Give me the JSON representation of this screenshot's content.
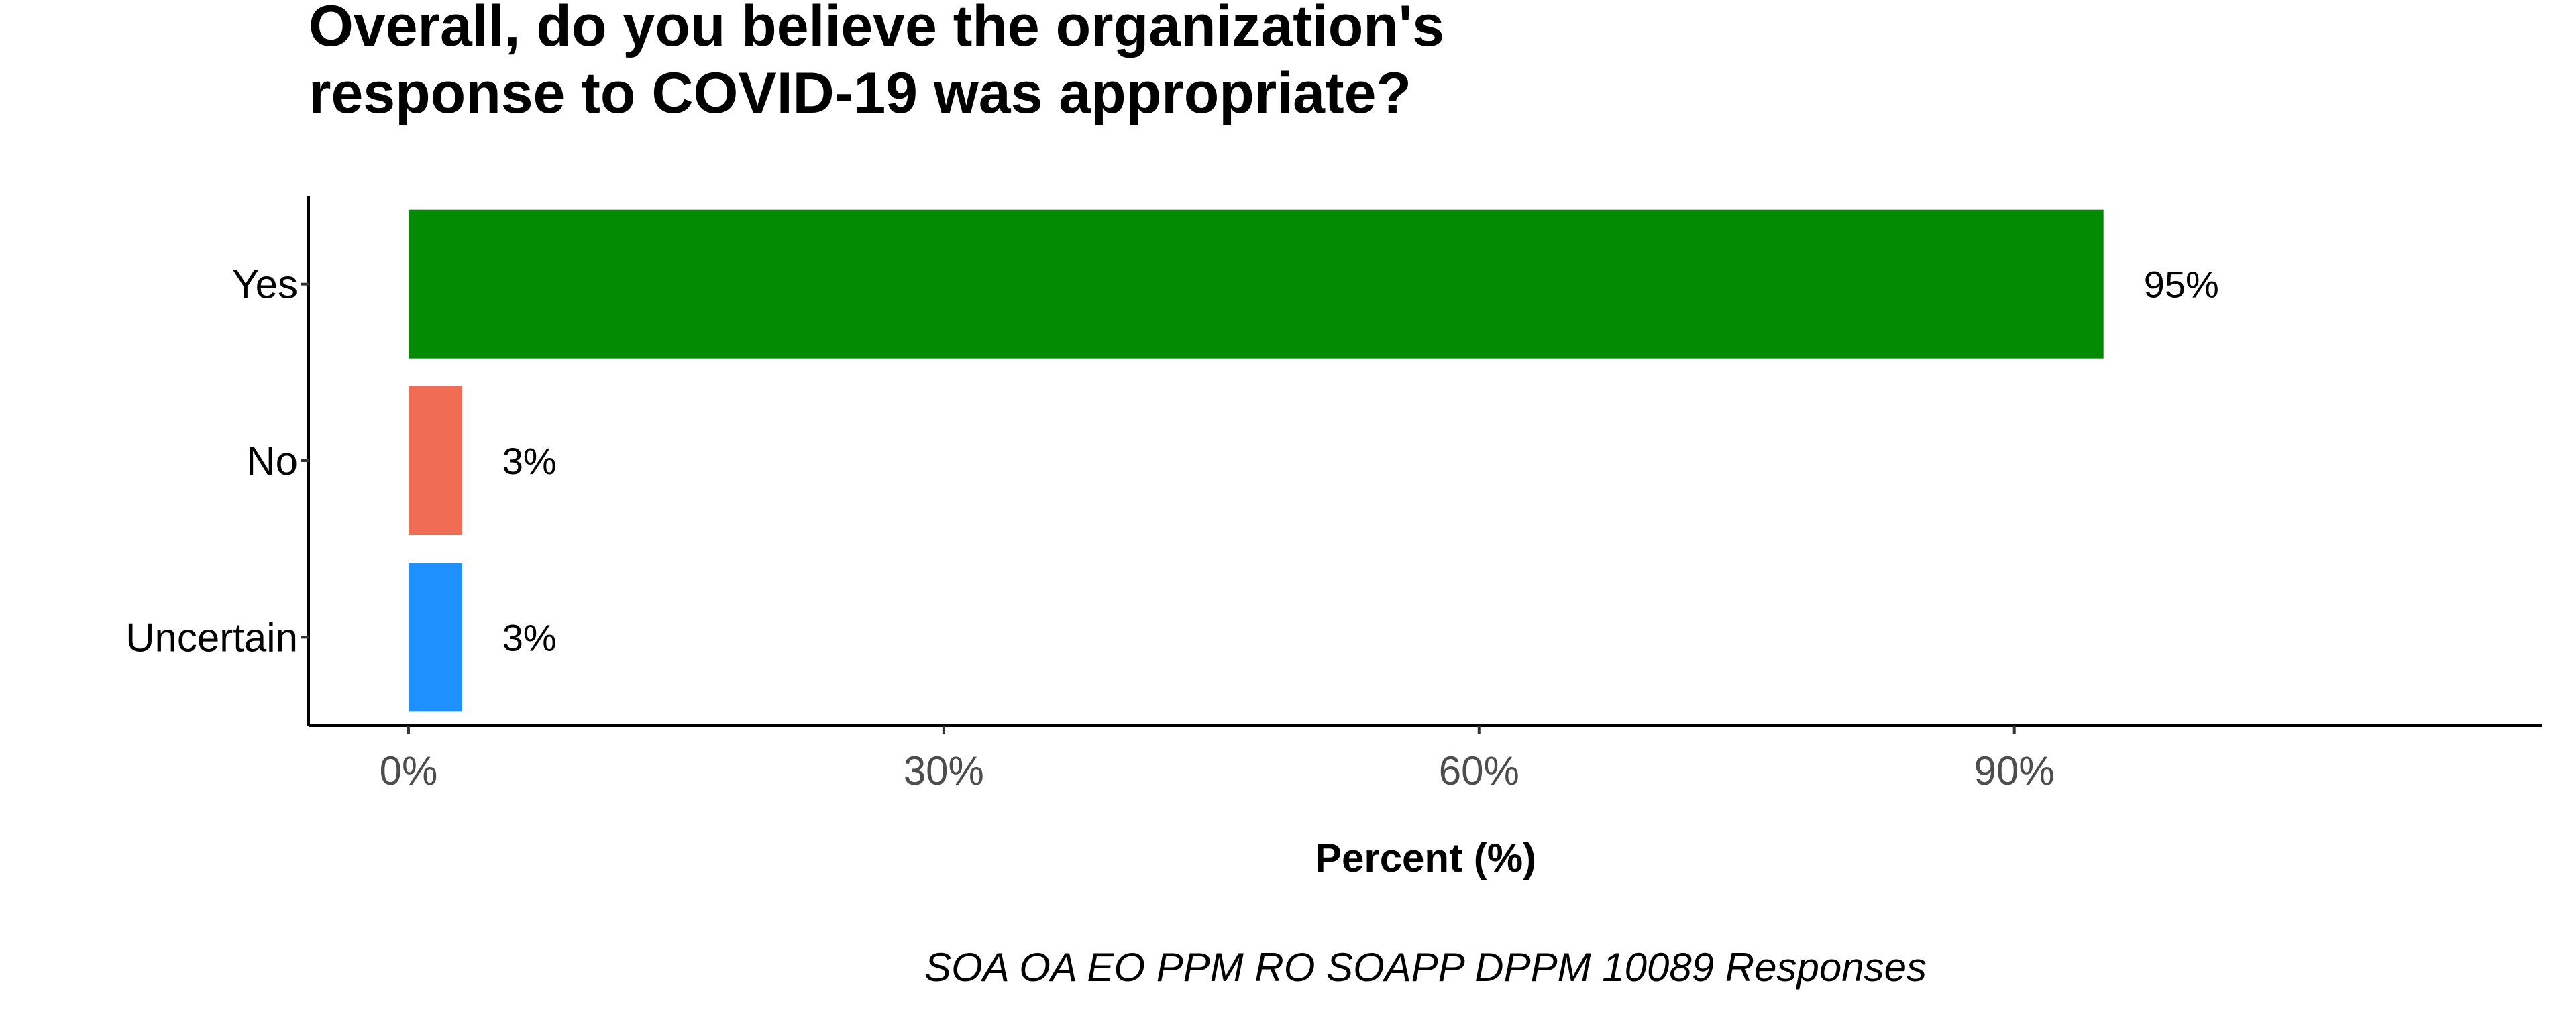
{
  "chart_data": {
    "type": "bar",
    "orientation": "horizontal",
    "title_lines": [
      "Overall, do you believe the organization's",
      "response to COVID-19 was appropriate?"
    ],
    "categories": [
      "Yes",
      "No",
      "Uncertain"
    ],
    "values": [
      95,
      3,
      3
    ],
    "value_labels": [
      "95%",
      "3%",
      "3%"
    ],
    "colors": [
      "#038C03",
      "#F06C54",
      "#1E90FF"
    ],
    "xlabel": "Percent (%)",
    "ylabel": "",
    "xticks": [
      0,
      30,
      60,
      90
    ],
    "xtick_labels": [
      "0%",
      "30%",
      "60%",
      "90%"
    ],
    "xlim": [
      -5.6,
      119.6
    ],
    "caption": "SOA OA EO PPM RO SOAPP DPPM 10089 Responses",
    "grid": false,
    "legend": "none"
  }
}
